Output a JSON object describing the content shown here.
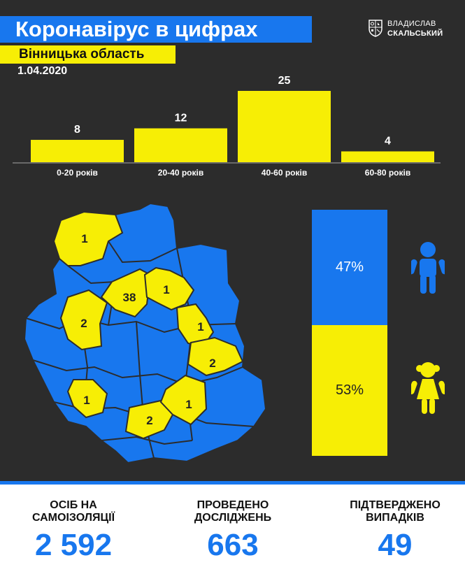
{
  "header": {
    "title": "Коронавірус в цифрах",
    "region": "Вінницька область",
    "date": "1.04.2020",
    "logo_line1": "ВЛАДИСЛАВ",
    "logo_line2": "СКАЛЬСЬКИЙ"
  },
  "colors": {
    "blue": "#1877ee",
    "yellow": "#f7ee05",
    "background": "#2c2c2c"
  },
  "chart_data": [
    {
      "type": "bar",
      "title": "",
      "categories": [
        "0-20 років",
        "20-40 років",
        "40-60 років",
        "60-80 років"
      ],
      "values": [
        8,
        12,
        25,
        4
      ],
      "xlabel": "",
      "ylabel": "",
      "ylim": [
        0,
        25
      ],
      "grid": false
    },
    {
      "type": "pie",
      "categories": [
        "male",
        "female"
      ],
      "values": [
        47,
        53
      ],
      "labels": [
        "47%",
        "53%"
      ]
    }
  ],
  "map": {
    "region_counts": [
      "1",
      "38",
      "1",
      "2",
      "1",
      "2",
      "1",
      "2",
      "1"
    ]
  },
  "stats": [
    {
      "label": "ОСІБ НА\nСАМОІЗОЛЯЦІЇ",
      "value": "2 592"
    },
    {
      "label": "ПРОВЕДЕНО\nДОСЛІДЖЕНЬ",
      "value": "663"
    },
    {
      "label": "ПІДТВЕРДЖЕНО\nВИПАДКІВ",
      "value": "49"
    }
  ],
  "icons": {
    "male": "male-person-icon",
    "female": "female-person-icon",
    "logo": "coat-of-arms-icon"
  }
}
